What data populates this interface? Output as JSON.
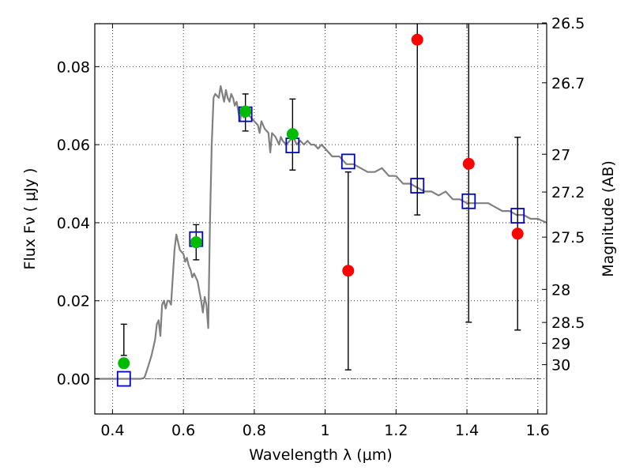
{
  "chart_data": {
    "type": "scatter",
    "title": "",
    "xlabel": "Wavelength  λ (μm)",
    "ylabel": "Flux  Fν  ( μJy )",
    "ylabel_right": "Magnitude (AB)",
    "xlim": [
      0.35,
      1.625
    ],
    "ylim": [
      -0.009,
      0.091
    ],
    "grid": true,
    "x_ticks": [
      {
        "value": 0.4,
        "label": "0.4"
      },
      {
        "value": 0.6,
        "label": "0.6"
      },
      {
        "value": 0.8,
        "label": "0.8"
      },
      {
        "value": 1.0,
        "label": "1"
      },
      {
        "value": 1.2,
        "label": "1.2"
      },
      {
        "value": 1.4,
        "label": "1.4"
      },
      {
        "value": 1.6,
        "label": "1.6"
      }
    ],
    "y_ticks": [
      {
        "value": 0.0,
        "label": "0.00"
      },
      {
        "value": 0.02,
        "label": "0.02"
      },
      {
        "value": 0.04,
        "label": "0.04"
      },
      {
        "value": 0.06,
        "label": "0.06"
      },
      {
        "value": 0.08,
        "label": "0.08"
      }
    ],
    "mag_ticks": [
      {
        "value": 26.5,
        "label": "26.5"
      },
      {
        "value": 26.7,
        "label": "26.7"
      },
      {
        "value": 27.0,
        "label": "27"
      },
      {
        "value": 27.2,
        "label": "27.2"
      },
      {
        "value": 27.5,
        "label": "27.5"
      },
      {
        "value": 28.0,
        "label": "28"
      },
      {
        "value": 28.5,
        "label": "28.5"
      },
      {
        "value": 29.0,
        "label": "29"
      },
      {
        "value": 30.0,
        "label": "30"
      }
    ],
    "colors": {
      "model": "#808080",
      "detected": "#00bb00",
      "nondetected": "#ff0000",
      "model_band": "#0000cc",
      "errorbar": "#000000",
      "zero_line": "#555555"
    },
    "series": [
      {
        "kind": "line",
        "points": [
          [
            0.35,
            0.0
          ],
          [
            0.48,
            0.0
          ],
          [
            0.49,
            0.0003
          ],
          [
            0.5,
            0.003
          ],
          [
            0.51,
            0.006
          ],
          [
            0.52,
            0.01
          ],
          [
            0.525,
            0.014
          ],
          [
            0.53,
            0.015
          ],
          [
            0.535,
            0.011
          ],
          [
            0.54,
            0.019
          ],
          [
            0.545,
            0.02
          ],
          [
            0.55,
            0.018
          ],
          [
            0.555,
            0.02
          ],
          [
            0.56,
            0.02
          ],
          [
            0.565,
            0.019
          ],
          [
            0.57,
            0.026
          ],
          [
            0.575,
            0.033
          ],
          [
            0.58,
            0.037
          ],
          [
            0.585,
            0.035
          ],
          [
            0.59,
            0.033
          ],
          [
            0.6,
            0.032
          ],
          [
            0.605,
            0.03
          ],
          [
            0.61,
            0.031
          ],
          [
            0.615,
            0.029
          ],
          [
            0.62,
            0.028
          ],
          [
            0.625,
            0.026
          ],
          [
            0.63,
            0.027
          ],
          [
            0.64,
            0.025
          ],
          [
            0.65,
            0.02
          ],
          [
            0.655,
            0.017
          ],
          [
            0.66,
            0.021
          ],
          [
            0.665,
            0.019
          ],
          [
            0.67,
            0.013
          ],
          [
            0.675,
            0.04
          ],
          [
            0.68,
            0.06
          ],
          [
            0.685,
            0.072
          ],
          [
            0.69,
            0.073
          ],
          [
            0.7,
            0.072
          ],
          [
            0.705,
            0.075
          ],
          [
            0.71,
            0.073
          ],
          [
            0.715,
            0.071
          ],
          [
            0.72,
            0.074
          ],
          [
            0.725,
            0.072
          ],
          [
            0.73,
            0.071
          ],
          [
            0.735,
            0.073
          ],
          [
            0.74,
            0.072
          ],
          [
            0.745,
            0.07
          ],
          [
            0.75,
            0.071
          ],
          [
            0.76,
            0.066
          ],
          [
            0.765,
            0.069
          ],
          [
            0.77,
            0.067
          ],
          [
            0.78,
            0.068
          ],
          [
            0.79,
            0.067
          ],
          [
            0.8,
            0.066
          ],
          [
            0.81,
            0.065
          ],
          [
            0.815,
            0.063
          ],
          [
            0.82,
            0.066
          ],
          [
            0.83,
            0.064
          ],
          [
            0.84,
            0.063
          ],
          [
            0.845,
            0.058
          ],
          [
            0.85,
            0.063
          ],
          [
            0.86,
            0.062
          ],
          [
            0.87,
            0.06
          ],
          [
            0.875,
            0.062
          ],
          [
            0.88,
            0.061
          ],
          [
            0.89,
            0.06
          ],
          [
            0.9,
            0.061
          ],
          [
            0.91,
            0.062
          ],
          [
            0.92,
            0.06
          ],
          [
            0.93,
            0.061
          ],
          [
            0.94,
            0.06
          ],
          [
            0.95,
            0.061
          ],
          [
            0.96,
            0.06
          ],
          [
            0.97,
            0.06
          ],
          [
            0.98,
            0.059
          ],
          [
            0.99,
            0.06
          ],
          [
            1.0,
            0.059
          ],
          [
            1.02,
            0.057
          ],
          [
            1.04,
            0.057
          ],
          [
            1.06,
            0.055
          ],
          [
            1.08,
            0.055
          ],
          [
            1.1,
            0.054
          ],
          [
            1.12,
            0.053
          ],
          [
            1.14,
            0.053
          ],
          [
            1.16,
            0.054
          ],
          [
            1.18,
            0.052
          ],
          [
            1.2,
            0.052
          ],
          [
            1.22,
            0.05
          ],
          [
            1.24,
            0.05
          ],
          [
            1.26,
            0.049
          ],
          [
            1.28,
            0.048
          ],
          [
            1.3,
            0.048
          ],
          [
            1.32,
            0.047
          ],
          [
            1.34,
            0.048
          ],
          [
            1.36,
            0.046
          ],
          [
            1.38,
            0.046
          ],
          [
            1.4,
            0.045
          ],
          [
            1.42,
            0.045
          ],
          [
            1.44,
            0.045
          ],
          [
            1.46,
            0.045
          ],
          [
            1.48,
            0.044
          ],
          [
            1.5,
            0.043
          ],
          [
            1.52,
            0.043
          ],
          [
            1.54,
            0.042
          ],
          [
            1.56,
            0.042
          ],
          [
            1.58,
            0.041
          ],
          [
            1.6,
            0.041
          ],
          [
            1.625,
            0.04
          ]
        ]
      },
      {
        "kind": "model_band",
        "points": [
          {
            "x": 0.432,
            "y": 0.0
          },
          {
            "x": 0.636,
            "y": 0.0358
          },
          {
            "x": 0.775,
            "y": 0.0678
          },
          {
            "x": 0.908,
            "y": 0.0598
          },
          {
            "x": 1.065,
            "y": 0.0557
          },
          {
            "x": 1.26,
            "y": 0.0495
          },
          {
            "x": 1.405,
            "y": 0.0455
          },
          {
            "x": 1.543,
            "y": 0.0418
          }
        ]
      },
      {
        "kind": "detected",
        "points": [
          {
            "x": 0.432,
            "y": 0.004,
            "err_low": 0.006,
            "err_high": 0.014
          },
          {
            "x": 0.636,
            "y": 0.035,
            "err_low": 0.0305,
            "err_high": 0.0395
          },
          {
            "x": 0.775,
            "y": 0.0685,
            "err_low": 0.0635,
            "err_high": 0.073
          },
          {
            "x": 0.908,
            "y": 0.0627,
            "err_low": 0.0535,
            "err_high": 0.0717
          }
        ]
      },
      {
        "kind": "nondetected",
        "points": [
          {
            "x": 1.065,
            "y": 0.0277,
            "err_low": 0.0023,
            "err_high": 0.053
          },
          {
            "x": 1.26,
            "y": 0.0869,
            "err_low": 0.042,
            "err_high": 0.095
          },
          {
            "x": 1.405,
            "y": 0.0551,
            "err_low": 0.0145,
            "err_high": 0.095
          },
          {
            "x": 1.543,
            "y": 0.0372,
            "err_low": 0.0125,
            "err_high": 0.0619
          }
        ]
      }
    ]
  }
}
